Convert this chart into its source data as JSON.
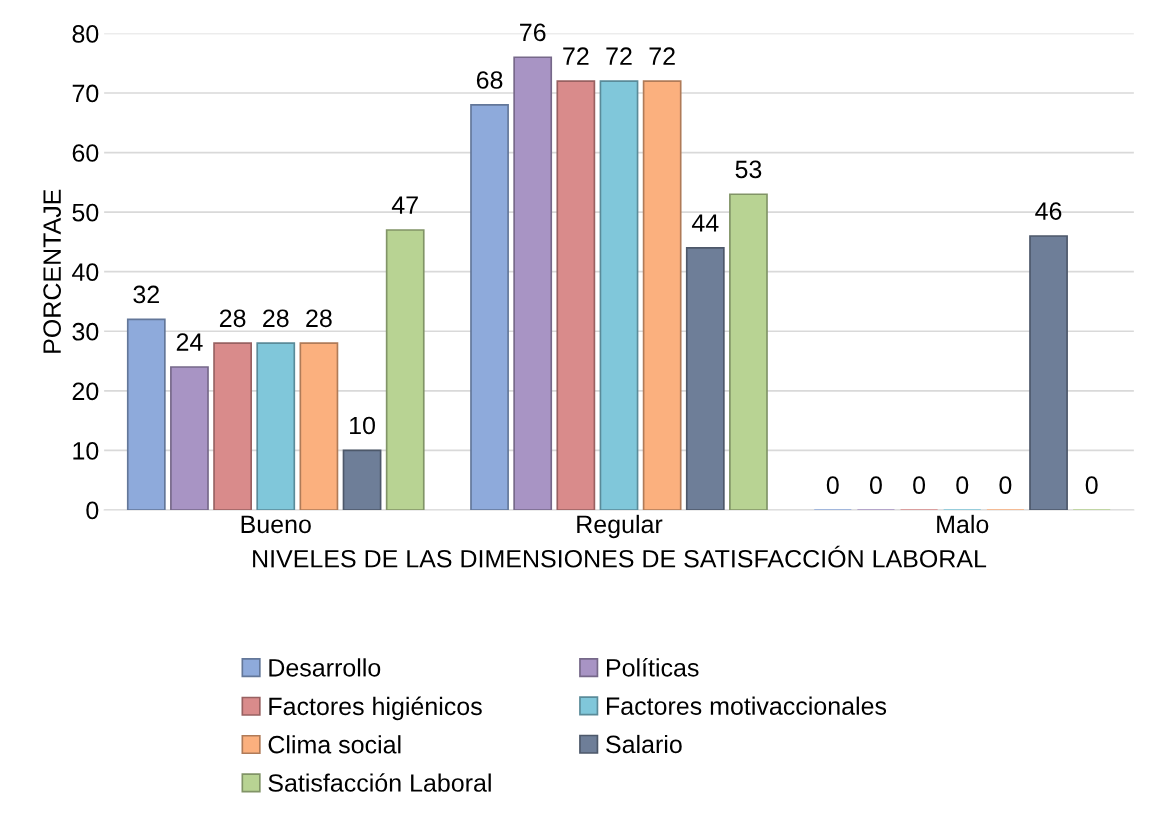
{
  "chart_data": {
    "type": "bar",
    "xlabel": "NIVELES DE LAS DIMENSIONES DE SATISFACCIÓN LABORAL",
    "ylabel": "PORCENTAJE",
    "categories": [
      "Bueno",
      "Regular",
      "Malo"
    ],
    "series": [
      {
        "name": "Desarrollo",
        "color": "#8eaadb",
        "values": [
          32,
          68,
          0
        ]
      },
      {
        "name": "Políticas",
        "color": "#a894c4",
        "values": [
          24,
          76,
          0
        ]
      },
      {
        "name": "Factores higiénicos",
        "color": "#d98b8b",
        "values": [
          28,
          72,
          0
        ]
      },
      {
        "name": "Factores motivaccionales",
        "color": "#80c7da",
        "values": [
          28,
          72,
          0
        ]
      },
      {
        "name": "Clima social",
        "color": "#fbb07e",
        "values": [
          28,
          72,
          0
        ]
      },
      {
        "name": "Salario",
        "color": "#6e7e98",
        "values": [
          10,
          44,
          46
        ]
      },
      {
        "name": "Satisfacción Laboral",
        "color": "#b8d393",
        "values": [
          47,
          53,
          0
        ]
      }
    ],
    "ylim": [
      0,
      80
    ],
    "yticks": [
      0,
      10,
      20,
      30,
      40,
      50,
      60,
      70,
      80
    ],
    "grid": "y",
    "legend": "bottom",
    "data_labels": true
  }
}
